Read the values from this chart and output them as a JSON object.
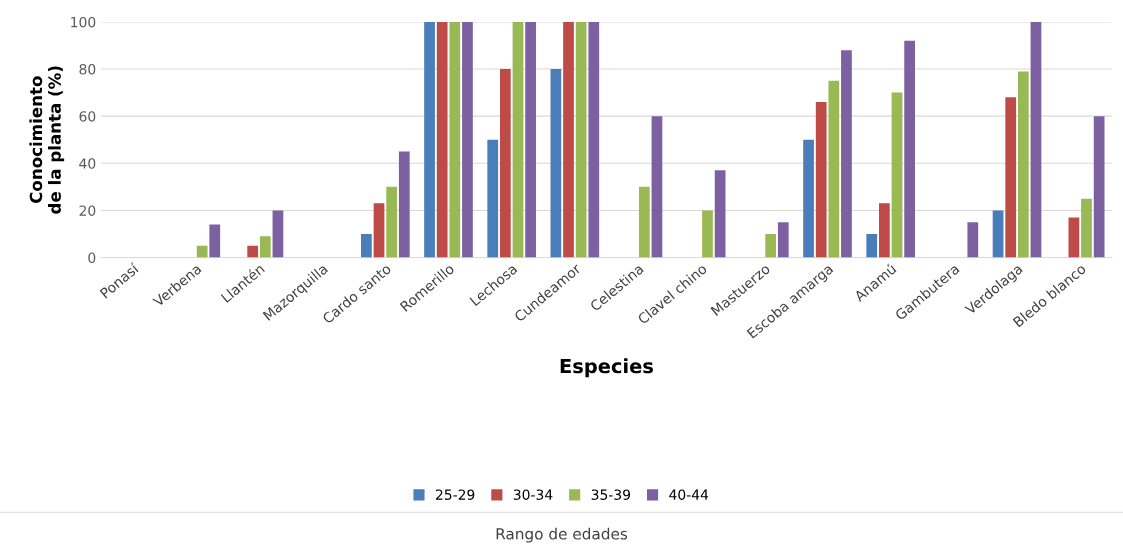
{
  "chart_data": {
    "type": "bar",
    "xlabel": "Especies",
    "ylabel": "Conocimiento\nde la planta (%)",
    "legend_title": "Rango de edades",
    "categories": [
      "Ponasí",
      "Verbena",
      "Llantén",
      "Mazorquilla",
      "Cardo santo",
      "Romerillo",
      "Lechosa",
      "Cundeamor",
      "Celestina",
      "Clavel chino",
      "Mastuerzo",
      "Escoba amarga",
      "Anamú",
      "Gambutera",
      "Verdolaga",
      "Bledo blanco"
    ],
    "series": [
      {
        "name": "25-29",
        "color": "#4a7ebb",
        "values": [
          0,
          0,
          0,
          0,
          10,
          100,
          50,
          80,
          0,
          0,
          0,
          50,
          10,
          0,
          20,
          0
        ]
      },
      {
        "name": "30-34",
        "color": "#be4b48",
        "values": [
          0,
          0,
          5,
          0,
          23,
          100,
          80,
          100,
          0,
          0,
          0,
          66,
          23,
          0,
          68,
          17
        ]
      },
      {
        "name": "35-39",
        "color": "#98b954",
        "values": [
          0,
          5,
          9,
          0,
          30,
          100,
          100,
          100,
          30,
          20,
          10,
          75,
          70,
          0,
          79,
          25
        ]
      },
      {
        "name": "40-44",
        "color": "#7d60a0",
        "values": [
          0,
          14,
          20,
          0,
          45,
          100,
          100,
          100,
          60,
          37,
          15,
          88,
          92,
          15,
          100,
          60
        ]
      }
    ],
    "ylim": [
      0,
      100
    ],
    "yticks": [
      0,
      20,
      40,
      60,
      80,
      100
    ],
    "grid": "y",
    "legend": "bottom"
  }
}
